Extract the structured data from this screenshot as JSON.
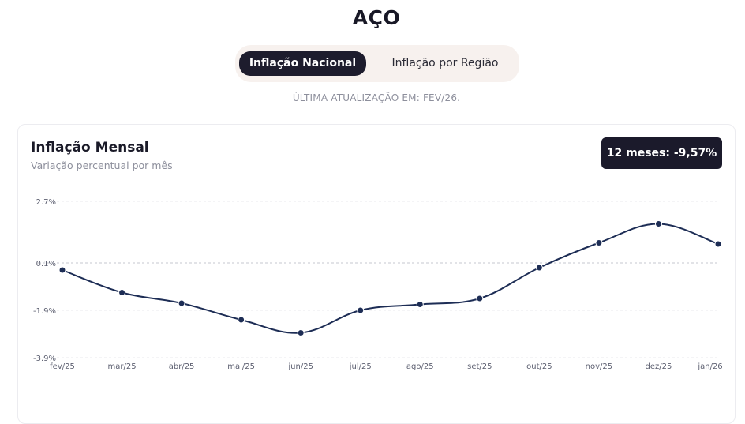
{
  "header": {
    "title": "AÇO"
  },
  "tabs": [
    {
      "label": "Inflação Nacional",
      "active": true
    },
    {
      "label": "Inflação por Região",
      "active": false
    }
  ],
  "updated_text": "ÚLTIMA ATUALIZAÇÃO EM: FEV/26.",
  "card": {
    "title": "Inflação Mensal",
    "subtitle": "Variação percentual por mês",
    "badge": "12 meses: -9,57%"
  },
  "colors": {
    "line": "#1d2d55",
    "grid": "#e9e9ee",
    "zero_line": "#c5c7cf",
    "badge_bg": "#1b1a2b",
    "active_tab": "#1d1c2d"
  },
  "chart_data": {
    "type": "line",
    "title": "Inflação Mensal",
    "subtitle": "Variação percentual por mês",
    "categories": [
      "fev/25",
      "mar/25",
      "abr/25",
      "mai/25",
      "jun/25",
      "jul/25",
      "ago/25",
      "set/25",
      "out/25",
      "nov/25",
      "dez/25",
      "jan/26"
    ],
    "series": [
      {
        "values": [
          -0.2,
          -1.15,
          -1.6,
          -2.3,
          -2.85,
          -1.9,
          -1.65,
          -1.4,
          -0.1,
          0.95,
          1.75,
          0.9
        ]
      }
    ],
    "y_ticks": [
      {
        "value": 2.7,
        "label": "2.7%"
      },
      {
        "value": 0.1,
        "label": "0.1%"
      },
      {
        "value": -1.9,
        "label": "-1.9%"
      },
      {
        "value": -3.9,
        "label": "-3.9%"
      }
    ],
    "ylim": [
      -3.9,
      2.7
    ],
    "grid": true,
    "reference_line": 0.1
  }
}
